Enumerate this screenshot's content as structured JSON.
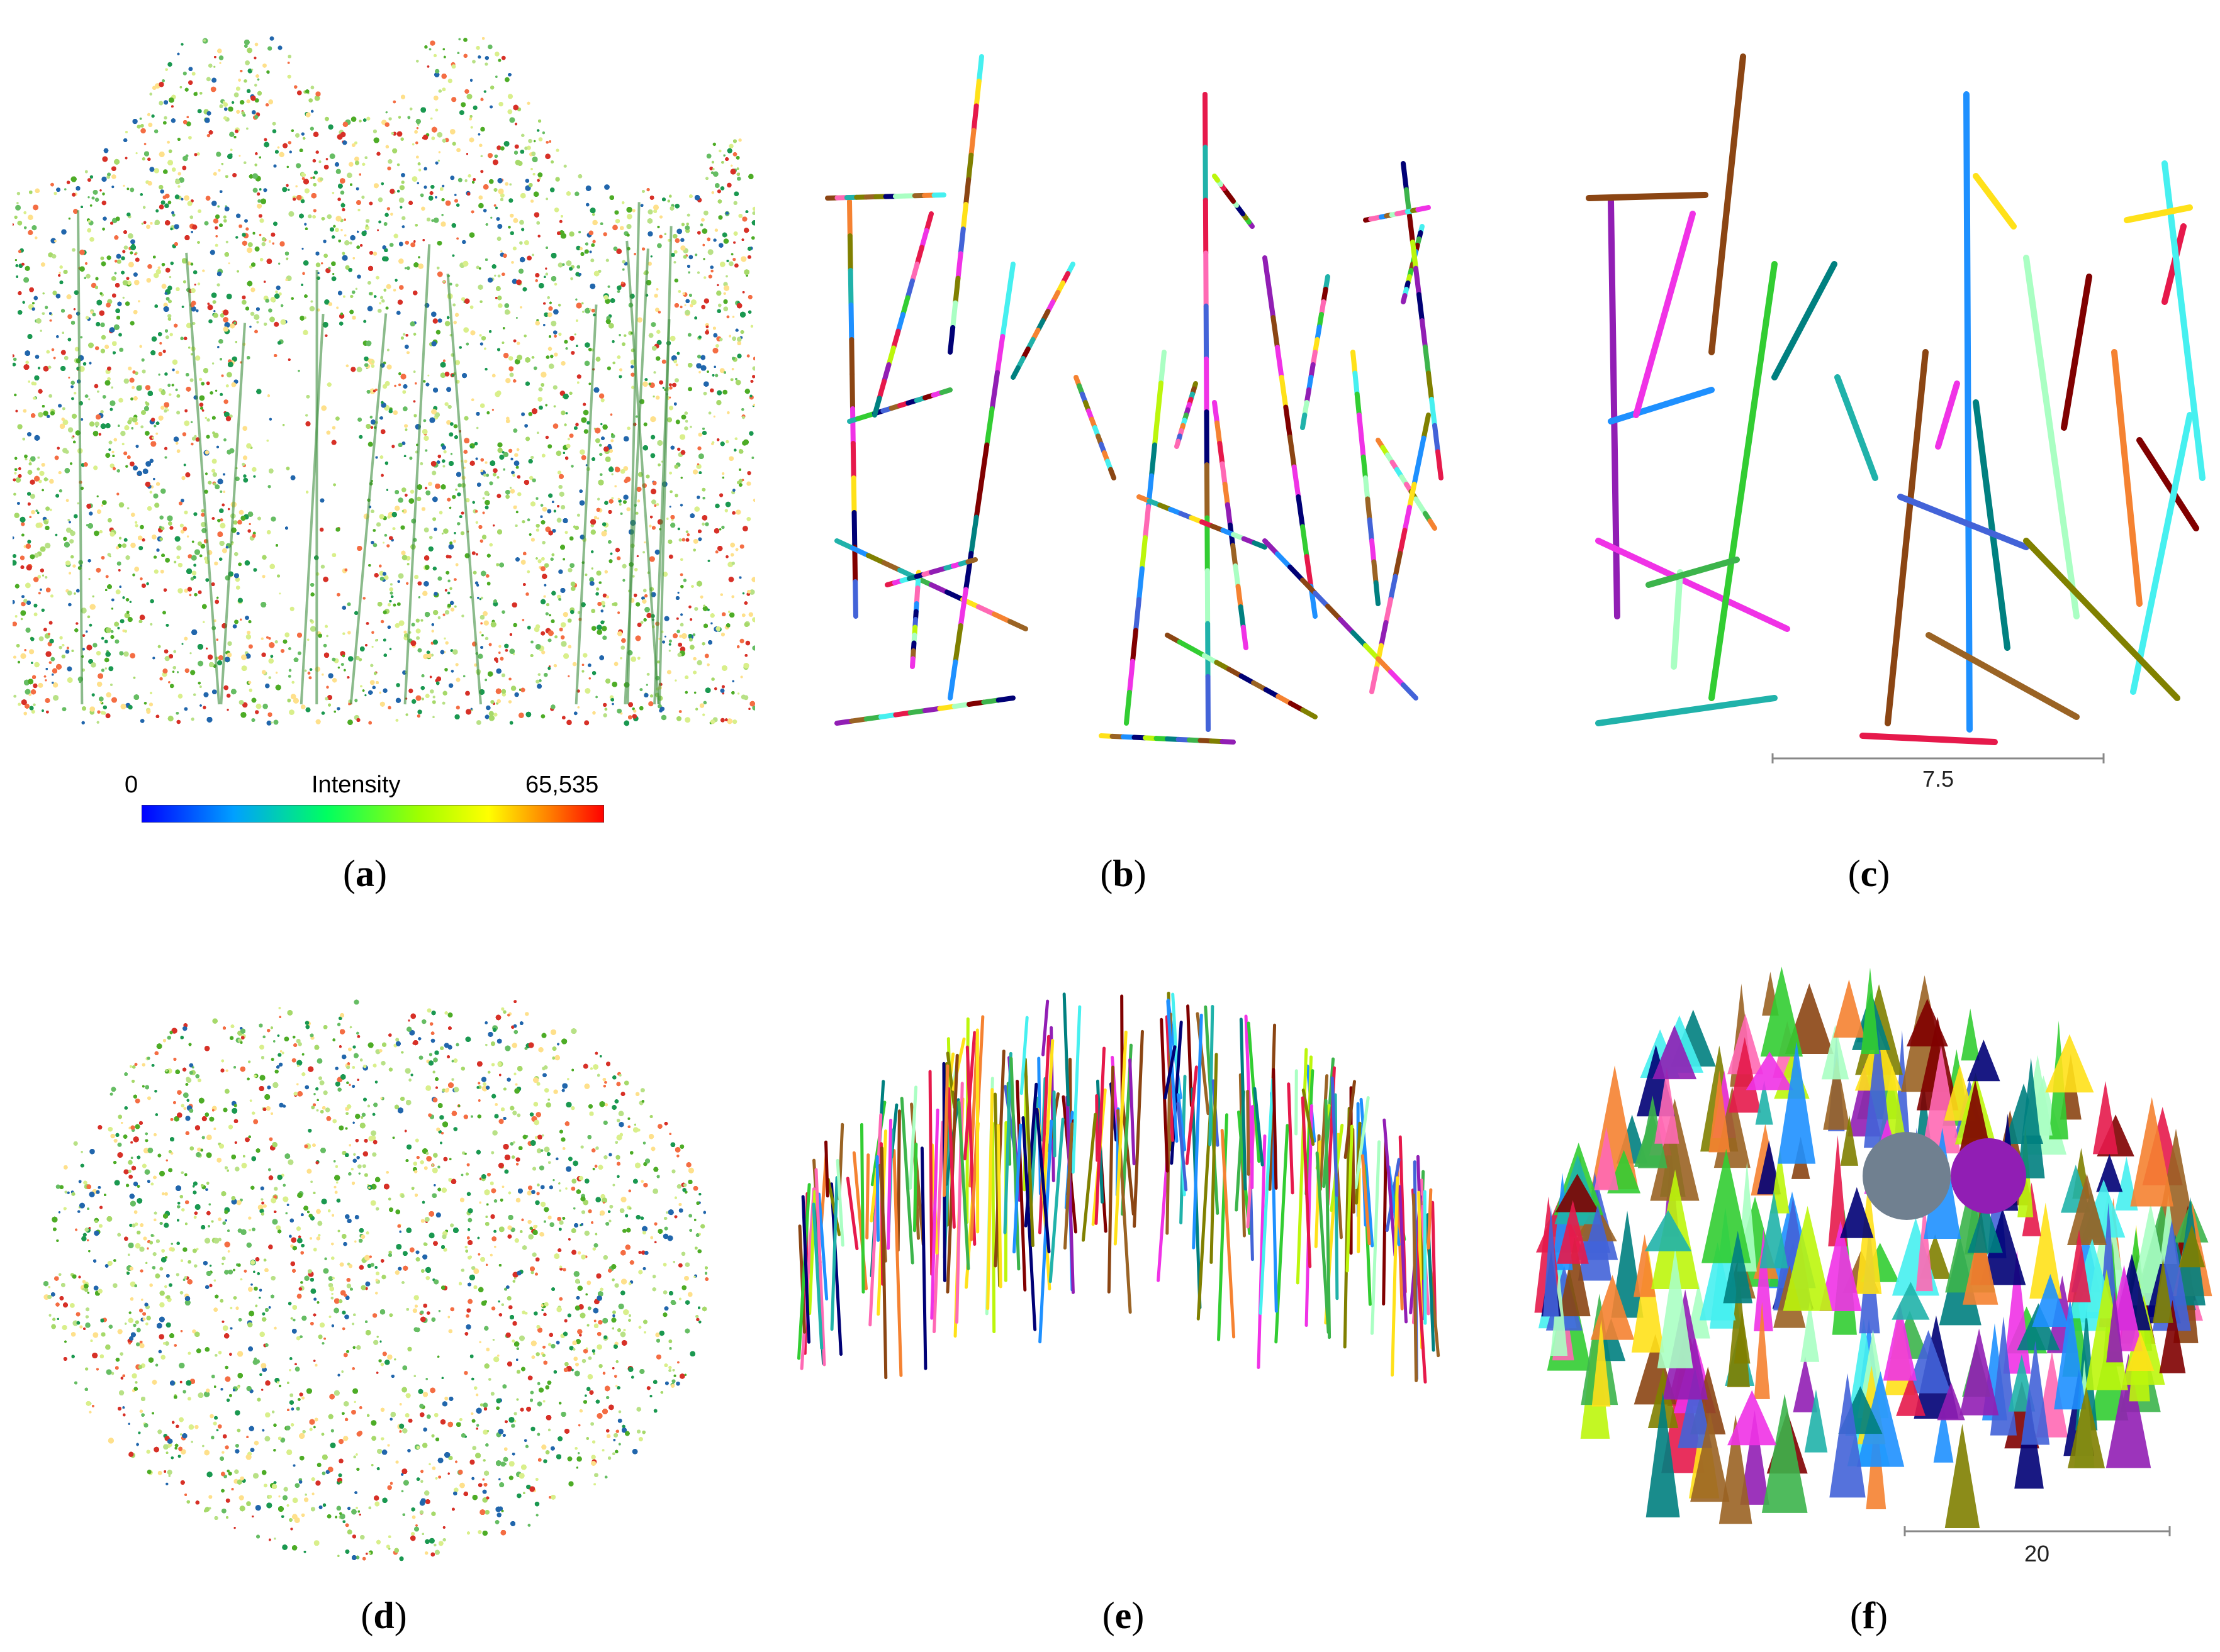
{
  "panels": [
    {
      "id": "a",
      "caption_open": "(",
      "caption_letter": "a",
      "caption_close": ")"
    },
    {
      "id": "b",
      "caption_open": "(",
      "caption_letter": "b",
      "caption_close": ")"
    },
    {
      "id": "c",
      "caption_open": "(",
      "caption_letter": "c",
      "caption_close": ")"
    },
    {
      "id": "d",
      "caption_open": "(",
      "caption_letter": "d",
      "caption_close": ")"
    },
    {
      "id": "e",
      "caption_open": "(",
      "caption_letter": "e",
      "caption_close": ")"
    },
    {
      "id": "f",
      "caption_open": "(",
      "caption_letter": "f",
      "caption_close": ")"
    }
  ],
  "colorbar": {
    "min_label": "0",
    "title": "Intensity",
    "max_label": "65,535",
    "colors": [
      "#0000ff",
      "#00a0ff",
      "#00ff60",
      "#a0ff00",
      "#ffff00",
      "#ff8000",
      "#ff0000"
    ]
  },
  "scalebar_c": {
    "label": "7.5"
  },
  "scalebar_f": {
    "label": "20"
  },
  "palette": [
    "#e6194b",
    "#3cb44b",
    "#4363d8",
    "#f58231",
    "#911eb4",
    "#46f0f0",
    "#f032e6",
    "#bcf60c",
    "#008080",
    "#9a6324",
    "#800000",
    "#aaffc3",
    "#808000",
    "#000075",
    "#ffe119",
    "#1e90ff",
    "#ff69b4",
    "#32cd32",
    "#8b4513",
    "#20b2aa"
  ],
  "intensity_palette": [
    "#1a9850",
    "#66bd63",
    "#a6d96a",
    "#d9ef8b",
    "#fee08b",
    "#f46d43",
    "#d73027",
    "#2166ac",
    "#4dac26",
    "#b8e186"
  ]
}
